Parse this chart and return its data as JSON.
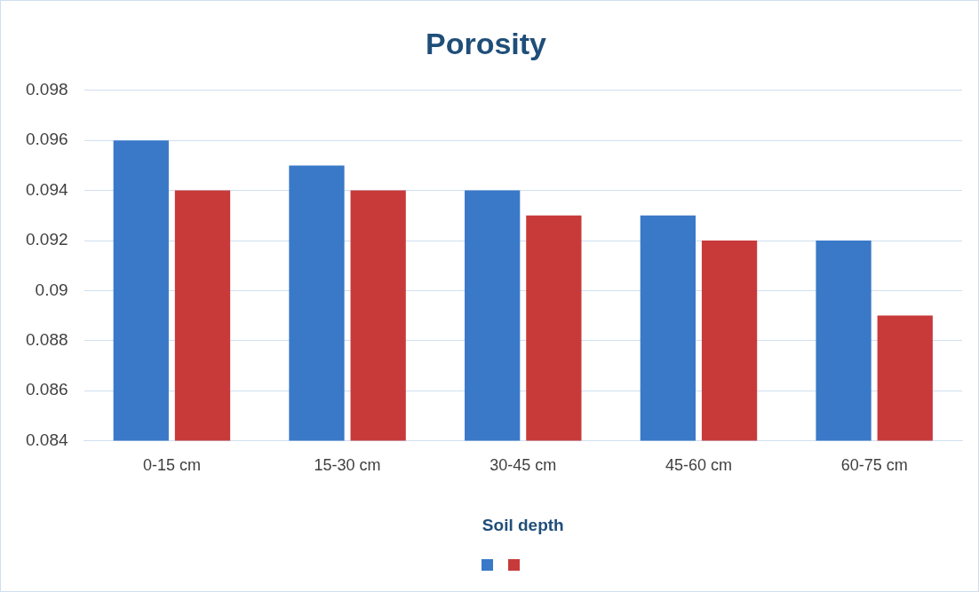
{
  "chart_data": {
    "type": "bar",
    "title": "Porosity",
    "xlabel": "Soil depth",
    "categories": [
      "0-15 cm",
      "15-30 cm",
      "30-45 cm",
      "45-60 cm",
      "60-75 cm"
    ],
    "series": [
      {
        "color": "#3a78c8",
        "values": [
          0.096,
          0.095,
          0.094,
          0.093,
          0.092
        ]
      },
      {
        "color": "#c83a3a",
        "values": [
          0.094,
          0.094,
          0.093,
          0.092,
          0.089
        ]
      }
    ],
    "ylim": [
      0.084,
      0.098
    ],
    "yticks": [
      0.084,
      0.086,
      0.088,
      0.09,
      0.092,
      0.094,
      0.096,
      0.098
    ],
    "grid": "y"
  }
}
